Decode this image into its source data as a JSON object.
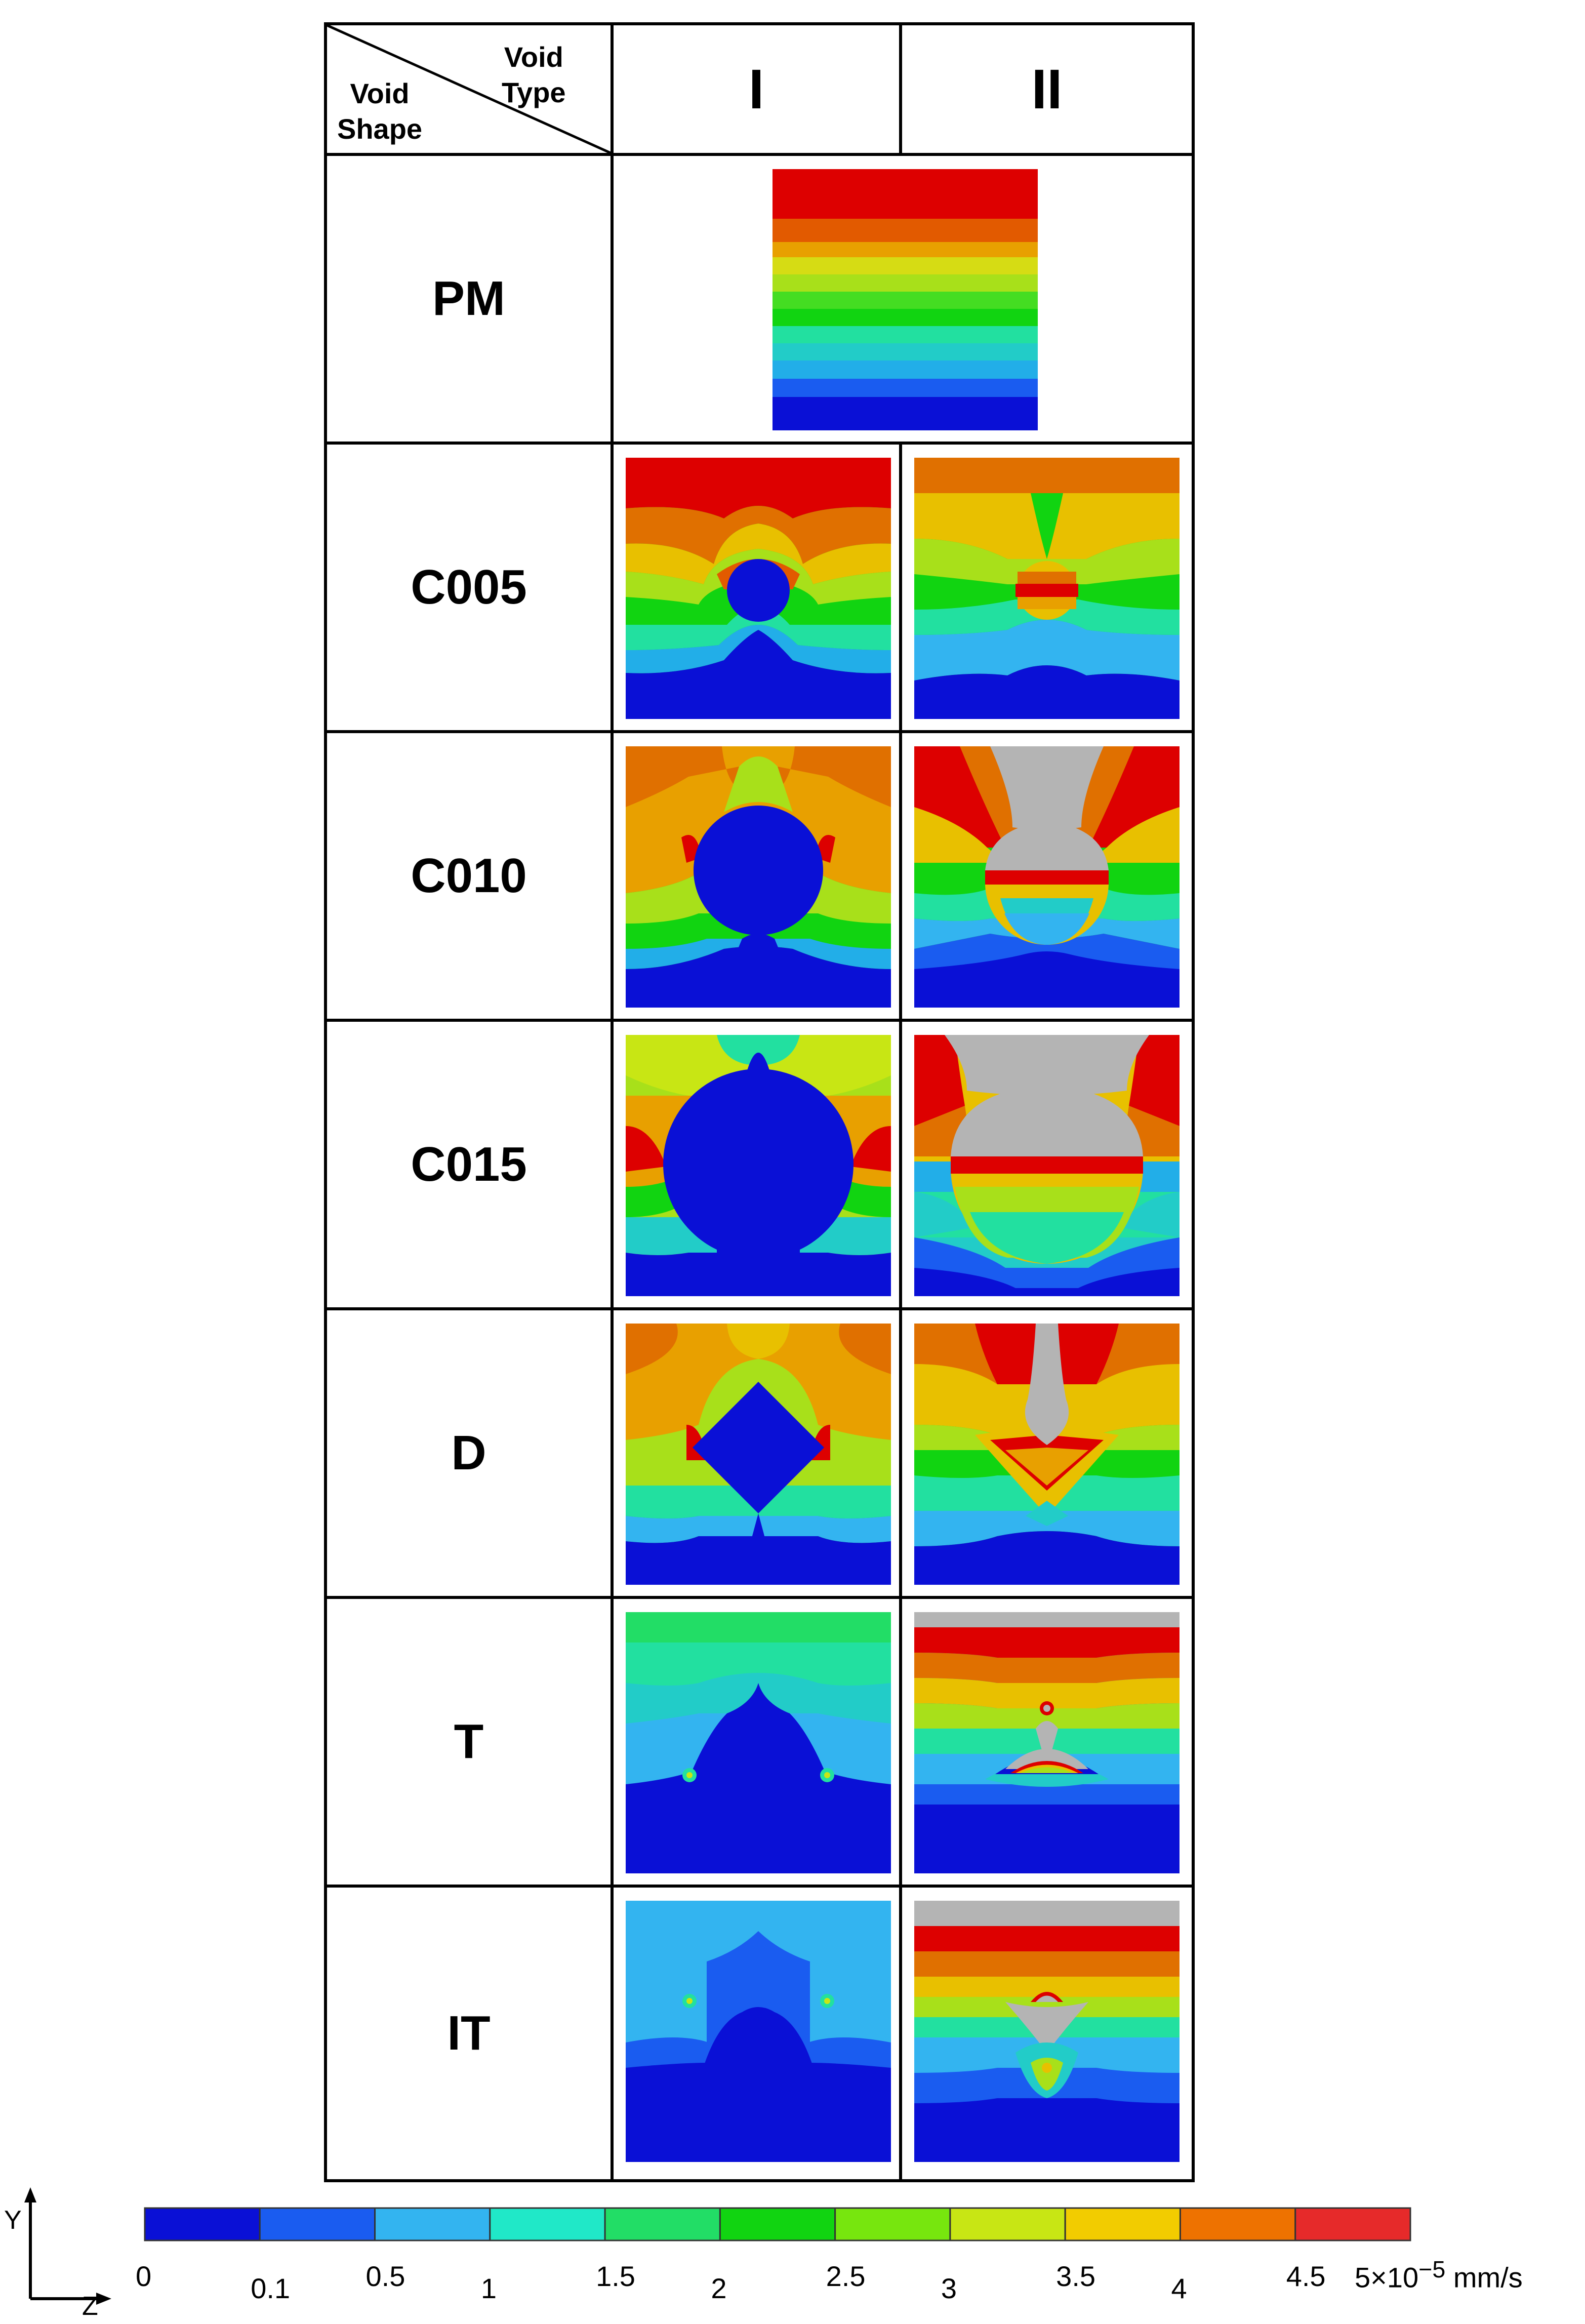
{
  "header": {
    "corner_top": [
      "Void",
      "Type"
    ],
    "corner_left": [
      "Void",
      "Shape"
    ],
    "columns": [
      "I",
      "II"
    ]
  },
  "rows": [
    {
      "label": "PM"
    },
    {
      "label": "C005"
    },
    {
      "label": "C010"
    },
    {
      "label": "C015"
    },
    {
      "label": "D"
    },
    {
      "label": "T"
    },
    {
      "label": "IT"
    }
  ],
  "colorbar": {
    "ticks": [
      "0",
      "0.1",
      "0.5",
      "1",
      "1.5",
      "2",
      "2.5",
      "3",
      "3.5",
      "4",
      "4.5"
    ],
    "last_tick": "5×10",
    "exponent": "−5",
    "unit": "mm/s",
    "colors": [
      "#0a10d6",
      "#1a5cf0",
      "#33b4f0",
      "#20e8c8",
      "#22dd66",
      "#11d411",
      "#77e60e",
      "#c8e614",
      "#f2cc00",
      "#ee7200",
      "#e62a2a"
    ]
  },
  "axes": {
    "y": "Y",
    "z": "Z"
  }
}
